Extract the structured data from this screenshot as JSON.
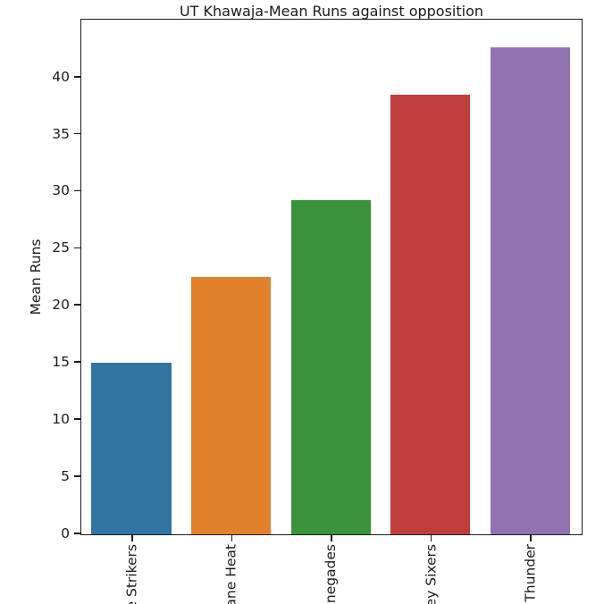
{
  "chart_data": {
    "type": "bar",
    "title": "UT Khawaja-Mean Runs against opposition",
    "ylabel": "Mean Runs",
    "xlabel": "",
    "categories": [
      "e Strikers",
      "ane Heat",
      "negades",
      "ey Sixers",
      "Thunder"
    ],
    "values": [
      15.0,
      22.5,
      29.25,
      38.5,
      42.6
    ],
    "bar_colors": [
      "#3274a1",
      "#e1812c",
      "#3a923a",
      "#c03d3e",
      "#9372b2"
    ],
    "yticks": [
      0,
      5,
      10,
      15,
      20,
      25,
      30,
      35,
      40
    ],
    "ylim": [
      0,
      44.9
    ],
    "grid": false,
    "legend": "none",
    "axis_color": "#1a1a1a",
    "background_color": "#ffffff",
    "x_tick_labels_rotation_deg": 90,
    "x_tick_labels_clipped_at_bottom": true
  }
}
